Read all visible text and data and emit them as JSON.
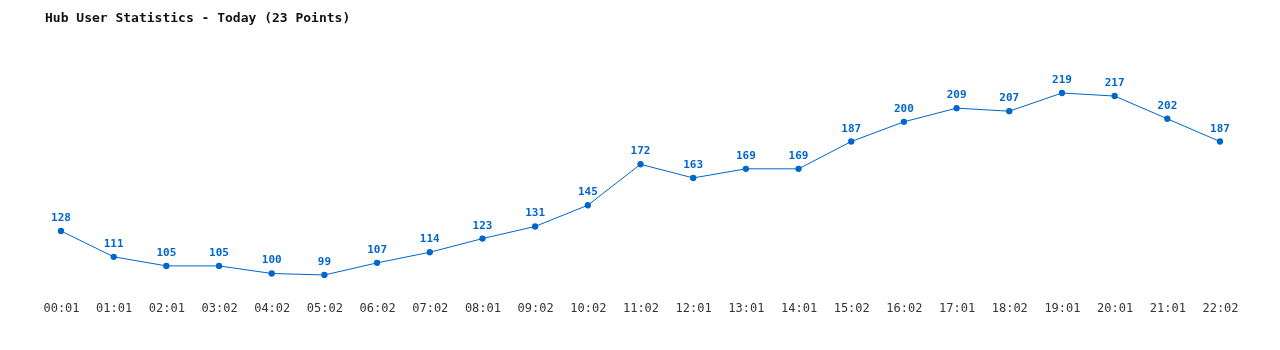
{
  "chart_data": {
    "type": "line",
    "title": "Hub User Statistics - Today (23 Points)",
    "categories": [
      "00:01",
      "01:01",
      "02:01",
      "03:02",
      "04:02",
      "05:02",
      "06:02",
      "07:02",
      "08:01",
      "09:02",
      "10:02",
      "11:02",
      "12:01",
      "13:01",
      "14:01",
      "15:02",
      "16:02",
      "17:01",
      "18:02",
      "19:01",
      "20:01",
      "21:01",
      "22:02"
    ],
    "series": [
      {
        "color": "#0066cc",
        "values": [
          128,
          111,
          105,
          105,
          100,
          99,
          107,
          114,
          123,
          131,
          145,
          172,
          163,
          169,
          169,
          187,
          200,
          209,
          207,
          219,
          217,
          202,
          187
        ]
      }
    ],
    "data_labels": true,
    "marker": "circle",
    "grid": false,
    "legend": false,
    "tick_labels": "x"
  }
}
